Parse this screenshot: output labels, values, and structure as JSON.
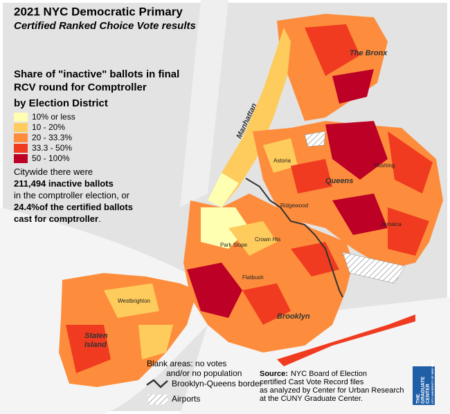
{
  "title": "2021 NYC Democratic Primary",
  "subtitle": "Certified Ranked Choice Vote results",
  "legend": {
    "title": [
      "Share of \"inactive\" ballots in final",
      "RCV round for Comptroller",
      "by Election District"
    ],
    "items": [
      {
        "label": "10% or less",
        "color": "#ffffb2"
      },
      {
        "label": "10 - 20%",
        "color": "#fecc5c"
      },
      {
        "label": "20 - 33.3%",
        "color": "#fd8d3c"
      },
      {
        "label": "33.3 - 50%",
        "color": "#f03b20"
      },
      {
        "label": "50 - 100%",
        "color": "#bd0026"
      }
    ]
  },
  "summary": [
    [
      {
        "text": "Citywide there were",
        "bold": false
      }
    ],
    [
      {
        "text": "211,494 inactive ballots",
        "bold": true
      }
    ],
    [
      {
        "text": "in the comptroller election, or",
        "bold": false
      }
    ],
    [
      {
        "text": "24.4%of the certified ballots",
        "bold": true
      }
    ],
    [
      {
        "text": "cast for comptroller",
        "bold": true
      },
      {
        "text": ".",
        "bold": false
      }
    ]
  ],
  "notes": {
    "blank": [
      "Blank areas: no votes",
      "and/or no population"
    ],
    "border": "Brooklyn-Queens border",
    "airports": "Airports"
  },
  "source": {
    "label": "Source:",
    "lines": [
      "NYC Board of Election",
      "certified Cast Vote Record files",
      "as analyzed by Center for Urban Research",
      "at the CUNY Graduate Center."
    ]
  },
  "places": {
    "bronx": "The Bronx",
    "manhattan": "Manhattan",
    "queens": "Queens",
    "brooklyn": "Brooklyn",
    "staten": [
      "Staten",
      "Island"
    ],
    "astoria": "Astoria",
    "ridgewood": "Ridgewood",
    "parkslope": "Park Slope",
    "crownhts": "Crown Hts",
    "flatbush": "Flatbush",
    "jamaica": "Jamaica",
    "flushing": "Flushing",
    "westbrighton": "Westbrighton"
  },
  "logo": [
    "THE",
    "GRADUATE",
    "CENTER",
    "CITY UNIVERSITY OF NEW YORK"
  ]
}
